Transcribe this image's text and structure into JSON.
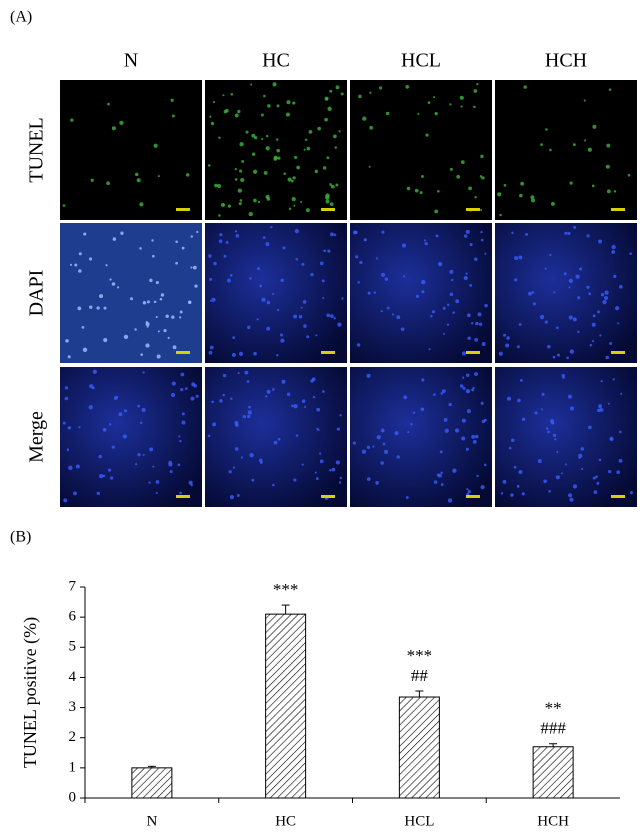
{
  "panel_a": {
    "label": "(A)",
    "columns": [
      "N",
      "HC",
      "HCL",
      "HCH"
    ],
    "rows": [
      "TUNEL",
      "DAPI",
      "Merge"
    ]
  },
  "chart_data": {
    "type": "bar",
    "panel_label": "(B)",
    "ylabel": "TUNEL positive (%)",
    "categories": [
      "N",
      "HC",
      "HCL",
      "HCH"
    ],
    "values": [
      1.0,
      6.1,
      3.35,
      1.7
    ],
    "errors": [
      0.05,
      0.3,
      0.2,
      0.1
    ],
    "annotations": [
      null,
      [
        "***"
      ],
      [
        "***",
        "##"
      ],
      [
        "**",
        "###"
      ]
    ],
    "color": "#000000",
    "ylim": [
      0,
      7
    ],
    "yticks": [
      0,
      1,
      2,
      3,
      4,
      5,
      6,
      7
    ],
    "grid": false
  }
}
